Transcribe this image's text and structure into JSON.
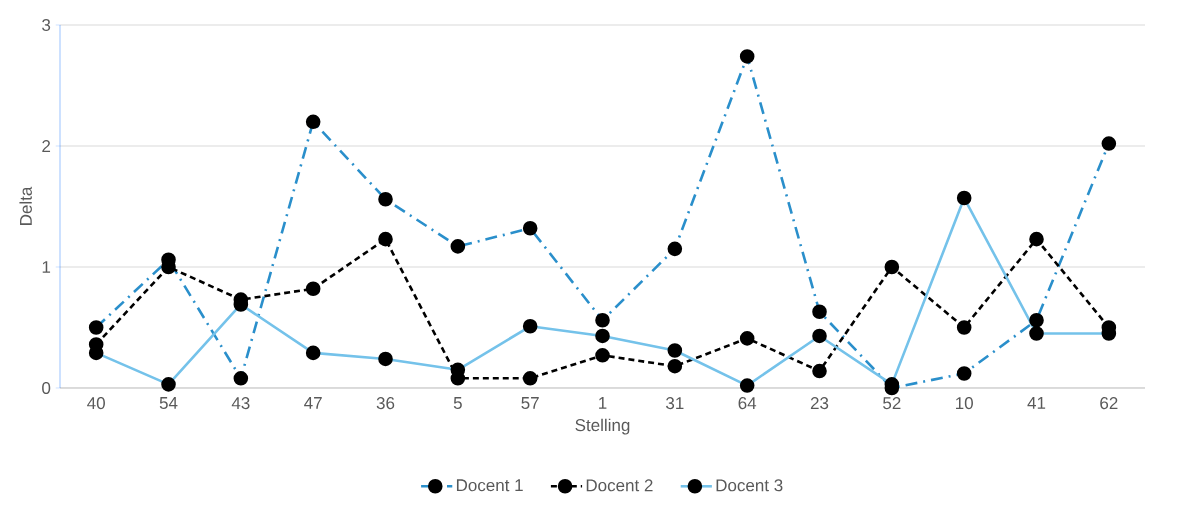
{
  "chart_data": {
    "type": "line",
    "xlabel": "Stelling",
    "ylabel": "Delta",
    "categories": [
      "40",
      "54",
      "43",
      "47",
      "36",
      "5",
      "57",
      "1",
      "31",
      "64",
      "23",
      "52",
      "10",
      "41",
      "62"
    ],
    "ylim": [
      0,
      3
    ],
    "yticks": [
      0,
      1,
      2,
      3
    ],
    "grid": "y",
    "legend": "bottom",
    "marker": "circle",
    "series": [
      {
        "name": "Docent 1",
        "color": "#2a8fcb",
        "line_style": "dashdot",
        "values": [
          0.5,
          1.06,
          0.08,
          2.2,
          1.56,
          1.17,
          1.32,
          0.56,
          1.15,
          2.74,
          0.63,
          0.0,
          0.12,
          0.56,
          2.02
        ]
      },
      {
        "name": "Docent 2",
        "color": "#000000",
        "line_style": "dashed",
        "values": [
          0.36,
          1.0,
          0.73,
          0.82,
          1.23,
          0.08,
          0.08,
          0.27,
          0.18,
          0.41,
          0.14,
          1.0,
          0.5,
          1.23,
          0.5
        ]
      },
      {
        "name": "Docent 3",
        "color": "#74c2ea",
        "line_style": "solid",
        "values": [
          0.29,
          0.03,
          0.69,
          0.29,
          0.24,
          0.15,
          0.51,
          0.43,
          0.31,
          0.02,
          0.43,
          0.03,
          1.57,
          0.45,
          0.45
        ]
      }
    ]
  }
}
